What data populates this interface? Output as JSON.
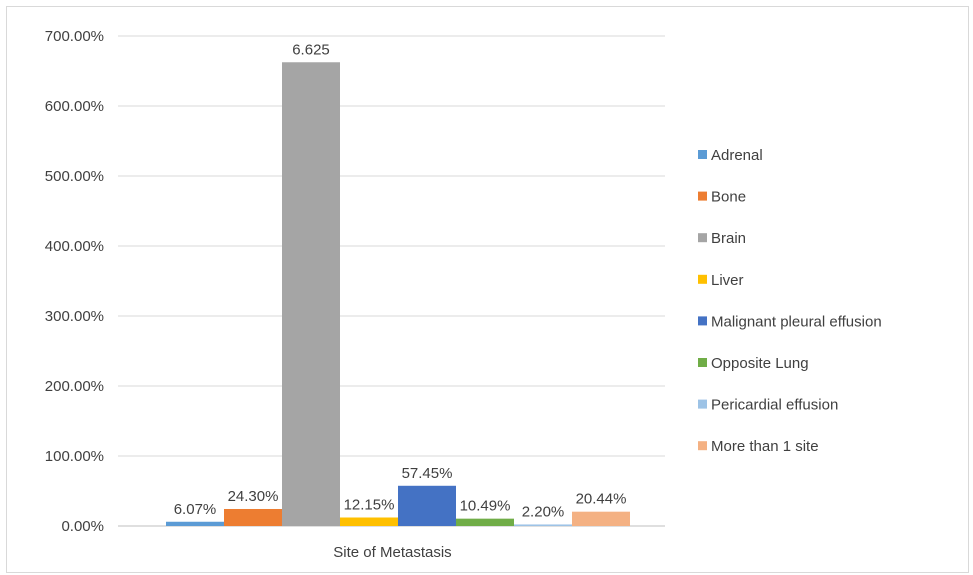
{
  "chart_data": {
    "type": "bar",
    "categories": [
      "Site of Metastasis"
    ],
    "xlabel": "",
    "ylabel": "",
    "ylim": [
      0,
      7
    ],
    "yticks": [
      "0.00%",
      "100.00%",
      "200.00%",
      "300.00%",
      "400.00%",
      "500.00%",
      "600.00%",
      "700.00%"
    ],
    "grid": true,
    "legend_position": "right",
    "series": [
      {
        "name": "Adrenal",
        "values": [
          0.0607
        ],
        "label": "6.07%",
        "color": "#5b9bd5"
      },
      {
        "name": "Bone",
        "values": [
          0.243
        ],
        "label": "24.30%",
        "color": "#ed7d31"
      },
      {
        "name": "Brain",
        "values": [
          6.625
        ],
        "label": "6.625",
        "color": "#a5a5a5"
      },
      {
        "name": "Liver",
        "values": [
          0.1215
        ],
        "label": "12.15%",
        "color": "#ffc000"
      },
      {
        "name": "Malignant pleural effusion",
        "values": [
          0.5745
        ],
        "label": "57.45%",
        "color": "#4472c4"
      },
      {
        "name": "Opposite Lung",
        "values": [
          0.1049
        ],
        "label": "10.49%",
        "color": "#70ad47"
      },
      {
        "name": "Pericardial effusion",
        "values": [
          0.022
        ],
        "label": "2.20%",
        "color": "#9dc3e6"
      },
      {
        "name": "More than 1 site",
        "values": [
          0.2044
        ],
        "label": "20.44%",
        "color": "#f4b183"
      }
    ]
  }
}
